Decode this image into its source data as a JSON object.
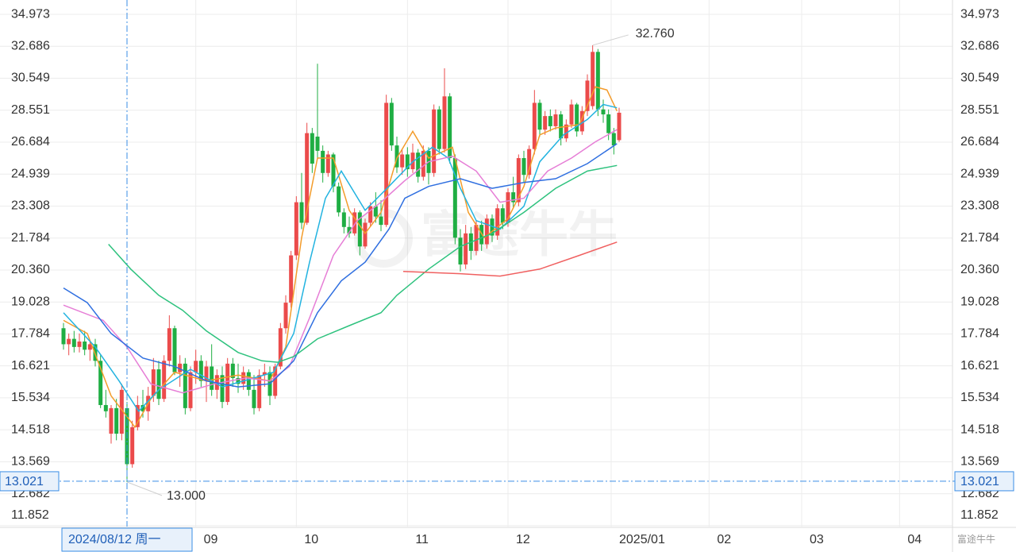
{
  "chart_data": {
    "type": "candlestick",
    "log_y": true,
    "grid": true,
    "up_color": "#eb4b4b",
    "down_color": "#1fae43",
    "xlim": [
      -12,
      168
    ],
    "ylim": [
      11.83,
      36.05
    ],
    "yticks": [
      34.973,
      32.686,
      30.549,
      28.551,
      26.684,
      24.939,
      23.308,
      21.784,
      {
        "value": 20.36,
        "label": "20.360"
      },
      19.028,
      17.784,
      16.621,
      15.534,
      14.518,
      13.569,
      12.682,
      11.852
    ],
    "xticks": [
      {
        "value": 25,
        "label": "09"
      },
      {
        "value": 44,
        "label": "10"
      },
      {
        "value": 65,
        "label": "11"
      },
      {
        "value": 84,
        "label": "12"
      },
      {
        "value": 103.5,
        "label": "2025/01"
      },
      {
        "value": 122,
        "label": "02"
      },
      {
        "value": 139.5,
        "label": "03"
      },
      {
        "value": 158,
        "label": "04"
      }
    ],
    "open": [
      18.0,
      17.4,
      17.6,
      17.3,
      17.5,
      17.2,
      17.4,
      16.8,
      15.3,
      14.4,
      15.2,
      14.4,
      15.2,
      13.5,
      14.6,
      15.3,
      15.1,
      15.6,
      16.5,
      15.5,
      16.8,
      18.0,
      16.4,
      16.7,
      15.2,
      16.4,
      16.8,
      16.1,
      16.6,
      15.8,
      16.3,
      15.4,
      16.7,
      16.2,
      16.0,
      16.4,
      15.8,
      15.2,
      16.3,
      16.4,
      15.6,
      16.6,
      18.0,
      19.0,
      21.0,
      23.5,
      22.5,
      27.2,
      27.0,
      26.2,
      25.0,
      26.0,
      24.3,
      23.0,
      22.3,
      22.0,
      23.0,
      21.4,
      22.5,
      23.3,
      22.8,
      22.4,
      29.0,
      26.5,
      25.3,
      26.0,
      25.2,
      26.1,
      24.8,
      26.2,
      25.0,
      28.6,
      26.3,
      29.4,
      25.8,
      21.8,
      20.6,
      22.0,
      21.2,
      22.4,
      21.5,
      22.7,
      21.9,
      23.2,
      22.5,
      24.0,
      23.5,
      25.8,
      24.9,
      26.3,
      29.0,
      27.4,
      28.2,
      27.6,
      28.3,
      26.9,
      27.7,
      28.9,
      27.3,
      28.5,
      28.8,
      32.3,
      28.6,
      28.3,
      27.2,
      26.8
    ],
    "high": [
      18.2,
      17.8,
      17.9,
      17.8,
      17.9,
      17.5,
      17.6,
      17.0,
      15.8,
      15.3,
      15.5,
      16.0,
      15.4,
      14.8,
      15.6,
      15.8,
      15.9,
      16.9,
      16.8,
      17.0,
      18.5,
      18.1,
      17.0,
      16.9,
      16.6,
      17.2,
      17.0,
      16.8,
      17.4,
      16.5,
      16.6,
      16.9,
      16.9,
      16.7,
      16.6,
      16.5,
      16.3,
      16.5,
      16.7,
      16.6,
      16.7,
      18.2,
      19.3,
      21.2,
      23.8,
      25.0,
      27.8,
      27.5,
      31.5,
      26.5,
      26.2,
      26.1,
      24.5,
      23.2,
      22.8,
      23.2,
      23.1,
      22.7,
      23.5,
      24.0,
      23.6,
      29.5,
      29.3,
      27.0,
      26.3,
      26.4,
      26.6,
      26.3,
      26.5,
      26.4,
      28.9,
      28.8,
      31.2,
      29.6,
      26.0,
      22.2,
      22.4,
      22.3,
      22.6,
      22.6,
      22.9,
      22.9,
      23.4,
      23.4,
      24.2,
      24.8,
      26.0,
      26.2,
      26.5,
      29.8,
      29.2,
      28.5,
      28.6,
      28.6,
      28.5,
      28.0,
      29.2,
      29.0,
      28.8,
      30.8,
      32.76,
      32.5,
      29.2,
      28.6,
      27.5,
      28.7
    ],
    "low": [
      17.2,
      17.0,
      17.1,
      17.1,
      17.0,
      16.8,
      16.6,
      15.2,
      14.9,
      14.1,
      14.2,
      14.2,
      13.0,
      13.4,
      14.5,
      14.9,
      14.8,
      15.4,
      15.3,
      15.4,
      16.6,
      16.3,
      15.9,
      15.0,
      15.1,
      16.0,
      15.9,
      15.4,
      15.6,
      15.5,
      15.2,
      15.3,
      15.9,
      15.7,
      15.8,
      15.6,
      15.0,
      15.1,
      15.9,
      15.3,
      15.5,
      16.5,
      17.8,
      18.8,
      20.8,
      22.2,
      22.4,
      25.0,
      25.8,
      24.5,
      24.8,
      24.0,
      22.8,
      22.0,
      21.8,
      21.9,
      21.0,
      21.3,
      22.3,
      22.5,
      22.1,
      22.3,
      26.2,
      25.0,
      24.9,
      24.8,
      25.0,
      24.5,
      24.6,
      24.4,
      24.8,
      26.0,
      26.1,
      25.5,
      21.5,
      20.3,
      20.4,
      20.8,
      21.0,
      21.2,
      21.3,
      21.6,
      21.7,
      22.2,
      22.3,
      23.2,
      23.3,
      24.5,
      24.7,
      26.0,
      27.0,
      27.1,
      27.3,
      27.4,
      26.5,
      26.7,
      27.5,
      27.0,
      27.1,
      28.2,
      28.6,
      28.2,
      27.8,
      26.8,
      26.0,
      26.7
    ],
    "close": [
      17.4,
      17.6,
      17.3,
      17.5,
      17.2,
      17.4,
      16.8,
      15.3,
      15.1,
      15.2,
      14.4,
      15.8,
      13.5,
      14.6,
      15.3,
      15.1,
      15.6,
      16.5,
      15.5,
      16.8,
      18.0,
      16.4,
      16.7,
      15.2,
      16.4,
      16.8,
      16.1,
      16.6,
      15.8,
      16.3,
      15.4,
      16.7,
      16.2,
      16.0,
      16.4,
      15.8,
      15.2,
      16.3,
      16.4,
      15.6,
      16.6,
      18.0,
      19.0,
      21.0,
      23.5,
      22.5,
      27.2,
      25.5,
      26.2,
      25.0,
      26.0,
      24.3,
      23.0,
      22.3,
      22.0,
      23.0,
      21.4,
      22.5,
      23.3,
      22.8,
      22.4,
      29.0,
      26.5,
      25.3,
      26.0,
      25.2,
      26.1,
      24.8,
      26.2,
      25.0,
      28.6,
      26.3,
      29.4,
      25.8,
      21.8,
      20.6,
      22.0,
      21.2,
      22.4,
      21.5,
      22.7,
      21.9,
      23.2,
      22.5,
      24.0,
      23.5,
      25.8,
      24.9,
      26.3,
      29.0,
      27.4,
      28.2,
      27.6,
      28.3,
      26.9,
      27.7,
      28.9,
      27.3,
      28.5,
      30.4,
      32.3,
      28.6,
      28.3,
      27.2,
      26.5,
      28.4
    ],
    "lines": [
      {
        "color": "#f39c2b",
        "x": [
          0,
          4.5,
          9,
          13.5,
          16.5,
          21,
          27,
          33,
          39,
          42,
          45,
          48,
          51,
          54,
          57,
          60,
          63,
          66,
          69,
          73.5,
          76.5,
          79.5,
          84,
          87,
          90,
          93,
          97.5,
          100.5,
          102.7,
          104.6
        ],
        "values": [
          18.3,
          17.8,
          15.6,
          14.6,
          15.5,
          16.4,
          16.1,
          16.3,
          16.1,
          17.3,
          21.8,
          25.8,
          25.8,
          23.1,
          22.0,
          23.0,
          25.8,
          27.3,
          25.8,
          26.4,
          23.0,
          21.8,
          22.7,
          24.3,
          27.1,
          27.5,
          27.7,
          30.0,
          29.8,
          28.5
        ]
      },
      {
        "color": "#22b3e0",
        "x": [
          0,
          6,
          10.5,
          14.2,
          18,
          24,
          30,
          36,
          39.7,
          43.5,
          46.5,
          49.5,
          52.5,
          57,
          61.5,
          66,
          69.7,
          72.7,
          75,
          78,
          82.5,
          87,
          90,
          94.5,
          99,
          102,
          104.6
        ],
        "values": [
          18.6,
          17.3,
          16.1,
          15.1,
          15.8,
          16.5,
          15.9,
          16.2,
          16.4,
          17.8,
          20.7,
          23.7,
          25.1,
          23.1,
          24.3,
          25.6,
          26.4,
          25.8,
          24.2,
          22.6,
          22.2,
          23.3,
          25.6,
          27.1,
          28.0,
          28.9,
          28.7
        ]
      },
      {
        "color": "#e67ed6",
        "x": [
          0,
          7.5,
          12,
          16.5,
          22.5,
          28.5,
          34.5,
          39,
          42.7,
          46.5,
          51,
          55.5,
          60,
          64.5,
          69,
          73.5,
          78,
          82.5,
          87,
          91.5,
          96,
          100.5,
          104.6
        ],
        "values": [
          18.9,
          18.3,
          17.3,
          16.0,
          15.7,
          16.0,
          16.2,
          16.1,
          16.6,
          18.4,
          21.0,
          22.6,
          23.5,
          24.6,
          25.6,
          25.9,
          25.1,
          23.5,
          23.7,
          25.1,
          25.8,
          26.7,
          27.4
        ]
      },
      {
        "color": "#2f6fe0",
        "x": [
          0,
          4.5,
          9,
          15,
          21,
          27,
          33,
          39,
          43.5,
          48,
          52.5,
          57,
          61.5,
          64.5,
          69,
          75,
          81,
          87,
          93,
          99,
          104.6
        ],
        "values": [
          19.6,
          19.0,
          17.8,
          16.9,
          16.6,
          16.1,
          15.9,
          16.0,
          16.8,
          18.6,
          19.9,
          20.7,
          22.2,
          23.7,
          24.3,
          24.7,
          24.2,
          24.5,
          24.7,
          25.5,
          26.6
        ]
      },
      {
        "color": "#2ec27e",
        "x": [
          8.5,
          12.7,
          18,
          22.5,
          27,
          33,
          37.5,
          40.5,
          43.5,
          48,
          54,
          60,
          63,
          69,
          75,
          81,
          87,
          93,
          99,
          104.6
        ],
        "values": [
          21.5,
          20.4,
          19.3,
          18.7,
          17.9,
          17.1,
          16.8,
          16.75,
          16.95,
          17.6,
          18.1,
          18.6,
          19.3,
          20.4,
          21.4,
          22.0,
          23.0,
          24.2,
          25.1,
          25.4
        ]
      },
      {
        "color": "#f06060",
        "x": [
          64.2,
          75,
          82.5,
          90,
          97.5,
          104.6
        ],
        "values": [
          20.3,
          20.2,
          20.1,
          20.4,
          21.0,
          21.6
        ]
      }
    ],
    "high_label": {
      "value": 32.76,
      "label": "32.760"
    },
    "low_label": {
      "value": 13.0,
      "label": "13.000"
    },
    "crosshair": {
      "date": "2024/08/12 周一",
      "index": 12,
      "price": 13.021
    },
    "watermark": "富途牛牛"
  }
}
